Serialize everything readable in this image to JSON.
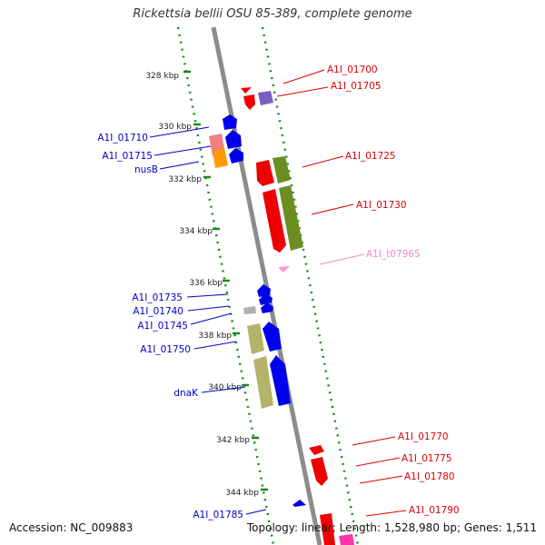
{
  "title": "Rickettsia bellii OSU 85-389, complete genome",
  "footer": {
    "accession": "Accession: NC_009883",
    "summary": "Topology: linear; Length: 1,528,980 bp; Genes: 1,511"
  },
  "colors": {
    "backbone": "#8c8c8c",
    "ruler": "#1a8a1a",
    "label_right": "#dd0000",
    "label_left": "#0000cc",
    "label_trna": "#ee88bb"
  },
  "scale": {
    "ticks": [
      {
        "label": "328 kbp"
      },
      {
        "label": "330 kbp"
      },
      {
        "label": "332 kbp"
      },
      {
        "label": "334 kbp"
      },
      {
        "label": "336 kbp"
      },
      {
        "label": "338 kbp"
      },
      {
        "label": "340 kbp"
      },
      {
        "label": "342 kbp"
      },
      {
        "label": "344 kbp"
      }
    ]
  },
  "genes": {
    "right_strand": [
      {
        "name": "A1I_01700",
        "color": "#ee0000",
        "kind": "cds"
      },
      {
        "name": "A1I_01705",
        "color": "#7b5fc0",
        "kind": "cds"
      },
      {
        "name": "A1I_01725",
        "color": "#ee0000",
        "kind": "cds",
        "paired_color": "#6b8e23"
      },
      {
        "name": "A1I_01730",
        "color": "#ee0000",
        "kind": "cds",
        "paired_color": "#6b8e23"
      },
      {
        "name": "A1I_t07965",
        "color": "#ff99cc",
        "kind": "trna"
      },
      {
        "name": "A1I_01770",
        "color": "#ee0000",
        "kind": "cds"
      },
      {
        "name": "A1I_01775",
        "color": "#ee0000",
        "kind": "cds"
      },
      {
        "name": "A1I_01780",
        "color": "#ee0000",
        "kind": "cds"
      },
      {
        "name": "A1I_01790",
        "color": "#ee0000",
        "kind": "cds"
      }
    ],
    "left_strand": [
      {
        "name": "A1I_01710",
        "color": "#0000ee",
        "kind": "cds",
        "paired_color": "#f08080"
      },
      {
        "name": "A1I_01715",
        "color": "#0000ee",
        "kind": "cds",
        "paired_color": "#ff9900"
      },
      {
        "name": "nusB",
        "color": "#0000ee",
        "kind": "cds"
      },
      {
        "name": "A1I_01735",
        "color": "#0000ee",
        "kind": "cds"
      },
      {
        "name": "A1I_01740",
        "color": "#0000ee",
        "kind": "cds",
        "paired_color": "#b0b0b0"
      },
      {
        "name": "A1I_01745",
        "color": "#0000ee",
        "kind": "cds"
      },
      {
        "name": "A1I_01750",
        "color": "#0000ee",
        "kind": "cds",
        "paired_color": "#b5b36a"
      },
      {
        "name": "dnaK",
        "color": "#0000ee",
        "kind": "cds",
        "paired_color": "#b5b36a"
      },
      {
        "name": "A1I_01785",
        "color": "#0000ee",
        "kind": "cds"
      }
    ]
  }
}
